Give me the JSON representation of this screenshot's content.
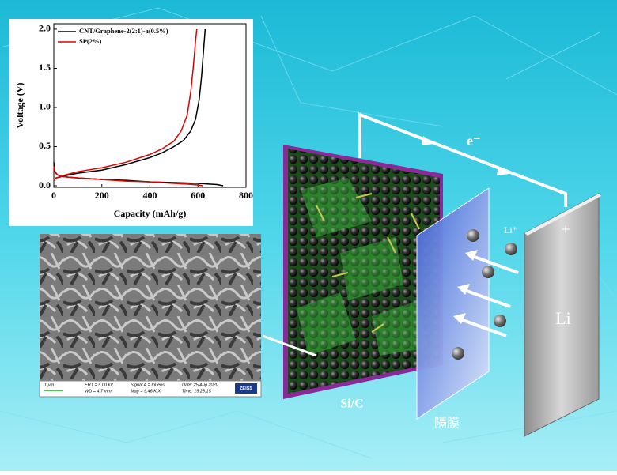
{
  "chart_data": {
    "type": "line",
    "xlabel": "Capacity (mAh/g)",
    "ylabel": "Voltage (V)",
    "xlim": [
      0,
      800
    ],
    "ylim": [
      -0.02,
      2.07
    ],
    "xticks": [
      0,
      200,
      400,
      600,
      800
    ],
    "yticks": [
      {
        "value": 0,
        "label": "0.0"
      },
      0.5,
      {
        "value": 1,
        "label": "1.0"
      },
      1.5,
      {
        "value": 2,
        "label": "2.0"
      }
    ],
    "legend": "upper left",
    "series": [
      {
        "name": "CNT/Graphene-2(2:1)-a(0.5%)",
        "color": "#000000",
        "x": [
          0,
          5,
          15,
          30,
          60,
          100,
          200,
          300,
          400,
          500,
          600,
          680,
          705,
          null,
          0,
          10,
          50,
          100,
          200,
          300,
          400,
          450,
          500,
          540,
          570,
          590,
          605,
          615,
          625,
          630
        ],
        "values": [
          0.3,
          0.18,
          0.14,
          0.12,
          0.11,
          0.1,
          0.08,
          0.07,
          0.05,
          0.04,
          0.03,
          0.015,
          0.0,
          null,
          0.07,
          0.1,
          0.13,
          0.16,
          0.2,
          0.27,
          0.36,
          0.42,
          0.5,
          0.58,
          0.7,
          0.85,
          1.1,
          1.4,
          1.8,
          2.0
        ]
      },
      {
        "name": "SP(2%)",
        "color": "#e00000",
        "x": [
          0,
          5,
          15,
          30,
          60,
          100,
          200,
          300,
          400,
          500,
          560,
          600,
          620,
          null,
          0,
          10,
          50,
          100,
          200,
          300,
          400,
          450,
          500,
          530,
          555,
          570,
          580,
          590,
          595
        ],
        "values": [
          0.25,
          0.17,
          0.14,
          0.12,
          0.11,
          0.1,
          0.08,
          0.06,
          0.05,
          0.03,
          0.02,
          0.01,
          0.0,
          null,
          0.07,
          0.1,
          0.14,
          0.18,
          0.23,
          0.3,
          0.4,
          0.47,
          0.57,
          0.7,
          0.9,
          1.2,
          1.5,
          1.85,
          2.0
        ]
      }
    ]
  },
  "sem": {
    "scale": "1 μm",
    "eht": "EHT = 5.00 kV",
    "wd": "WD = 4.7 mm",
    "signal": "Signal A = InLens",
    "mag": "Mag = 9.46 K X",
    "date": "Date: 25 Aug 2020",
    "time": "Time: 15:28:15",
    "brand": "ZEISS"
  },
  "labels": {
    "electron": "e⁻",
    "lithium_ion": "Li⁺",
    "plus": "+",
    "lithium": "Li",
    "anode": "Si/C",
    "separator": "隔膜"
  }
}
